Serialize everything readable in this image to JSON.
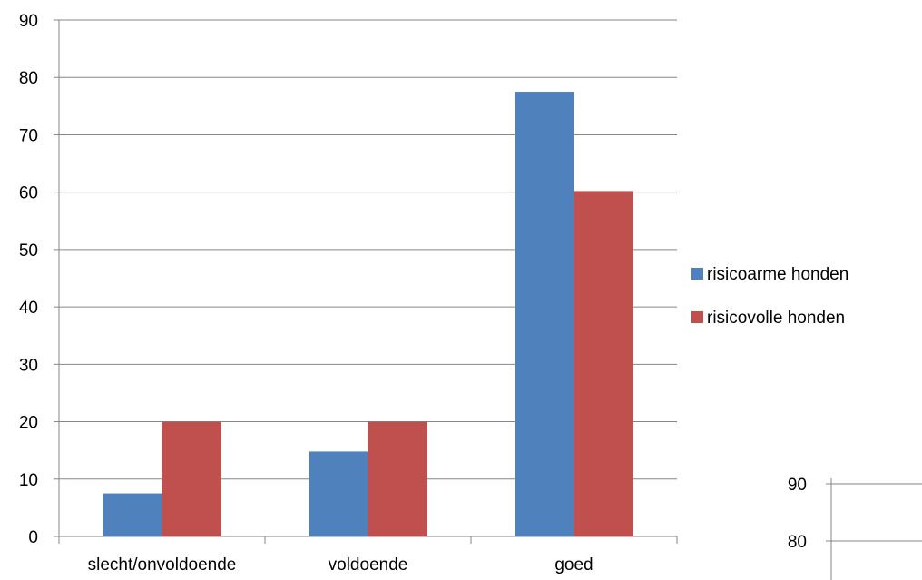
{
  "chart_data": [
    {
      "type": "bar",
      "title": "",
      "xlabel": "",
      "ylabel": "",
      "categories": [
        "slecht/onvoldoende",
        "voldoende",
        "goed"
      ],
      "series": [
        {
          "name": "risicoarme honden",
          "values": [
            7.5,
            14.8,
            77.5
          ]
        },
        {
          "name": "risicovolle honden",
          "values": [
            20,
            20,
            60.2
          ]
        }
      ],
      "ylim": [
        0,
        90
      ],
      "yticks": [
        0,
        10,
        20,
        30,
        40,
        50,
        60,
        70,
        80,
        90
      ],
      "grid": true,
      "legend": "right",
      "colors": [
        "#4f81bd",
        "#c0504d"
      ]
    },
    {
      "type": "bar",
      "partial": true,
      "categories": [],
      "series": [],
      "yticks": [
        80,
        90
      ],
      "grid": true
    }
  ]
}
